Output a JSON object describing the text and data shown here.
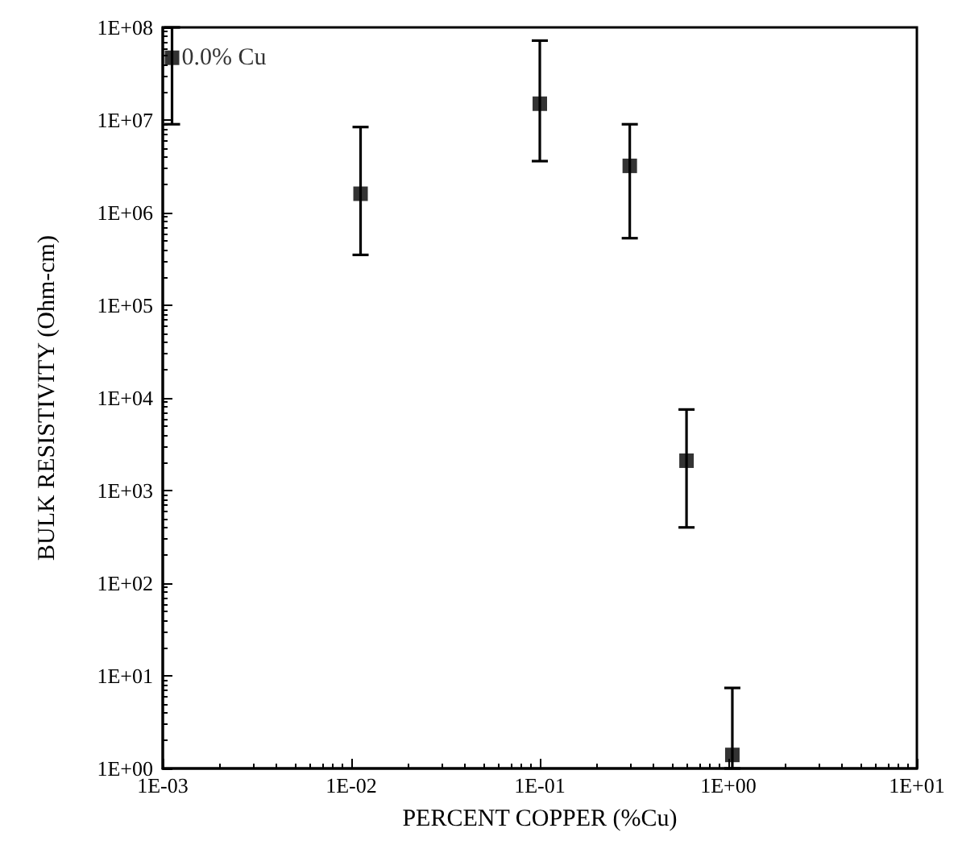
{
  "chart_data": {
    "type": "scatter",
    "xlabel": "PERCENT COPPER (%Cu)",
    "ylabel": "BULK RESISTIVITY (Ohm-cm)",
    "x": [
      0.00112,
      0.0112,
      0.1,
      0.3,
      0.6,
      1.05
    ],
    "values": [
      47000000,
      1600000,
      15000000,
      3200000,
      2100,
      1.4
    ],
    "errors": [
      [
        9000000,
        100000000
      ],
      [
        350000,
        8400000
      ],
      [
        3600000,
        72000000
      ],
      [
        530000,
        9000000
      ],
      [
        400,
        7500
      ],
      [
        1,
        7.4
      ]
    ],
    "color": "#000000",
    "marker": "square",
    "log": "xy",
    "grid": false,
    "xlim": [
      0.001,
      10
    ],
    "xticks": [
      {
        "value": 0.001,
        "label": "1E-03"
      },
      {
        "value": 0.01,
        "label": "1E-02"
      },
      {
        "value": 0.1,
        "label": "1E-01"
      },
      {
        "value": 1,
        "label": "1E+00"
      },
      {
        "value": 10,
        "label": "1E+01"
      }
    ],
    "ylim": [
      1,
      100000000
    ],
    "yticks": [
      {
        "value": 1,
        "label": "1E+00"
      },
      {
        "value": 10,
        "label": "1E+01"
      },
      {
        "value": 100,
        "label": "1E+02"
      },
      {
        "value": 1000,
        "label": "1E+03"
      },
      {
        "value": 10000,
        "label": "1E+04"
      },
      {
        "value": 100000,
        "label": "1E+05"
      },
      {
        "value": 1000000,
        "label": "1E+06"
      },
      {
        "value": 10000000,
        "label": "1E+07"
      },
      {
        "value": 100000000,
        "label": "1E+08"
      }
    ],
    "annotations": [
      {
        "text": "0.0% Cu",
        "x": 0.00112,
        "y": 47000000
      }
    ]
  }
}
